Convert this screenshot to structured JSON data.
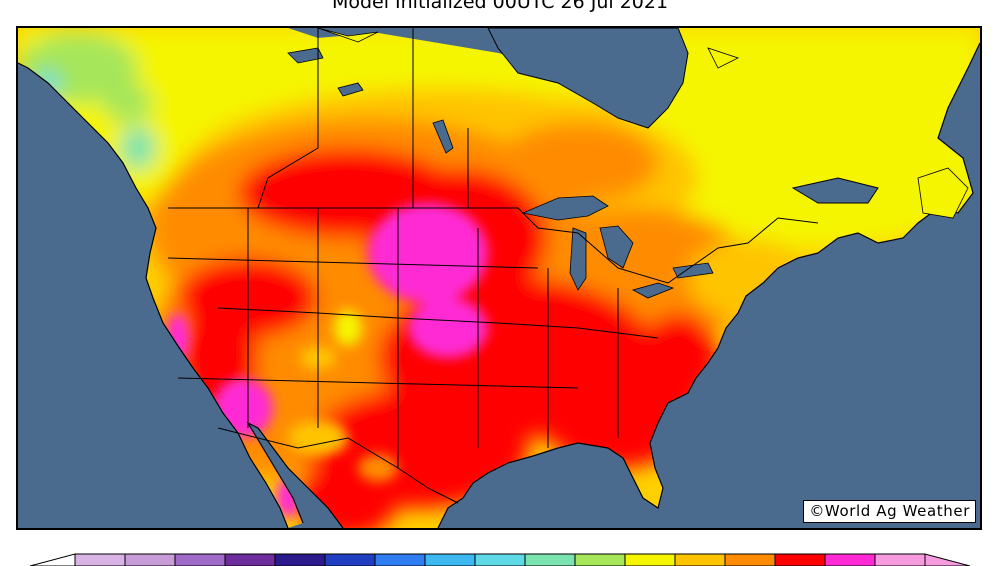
{
  "header": {
    "title": "Model Initialized 00UTC 26 Jul 2021"
  },
  "map": {
    "credit": "©World Ag Weather",
    "ocean_color": "#4a6a8e",
    "temperature_palette": [
      "#d9b3e6",
      "#c89bd9",
      "#a06ac8",
      "#6e2d9c",
      "#2a1a8c",
      "#1f3fc0",
      "#2f7df0",
      "#3db8f0",
      "#5fd9e6",
      "#7be3b0",
      "#a6e65a",
      "#f5f500",
      "#ffc400",
      "#ff8c00",
      "#ff0000",
      "#ff2ad4",
      "#f79be0"
    ]
  }
}
